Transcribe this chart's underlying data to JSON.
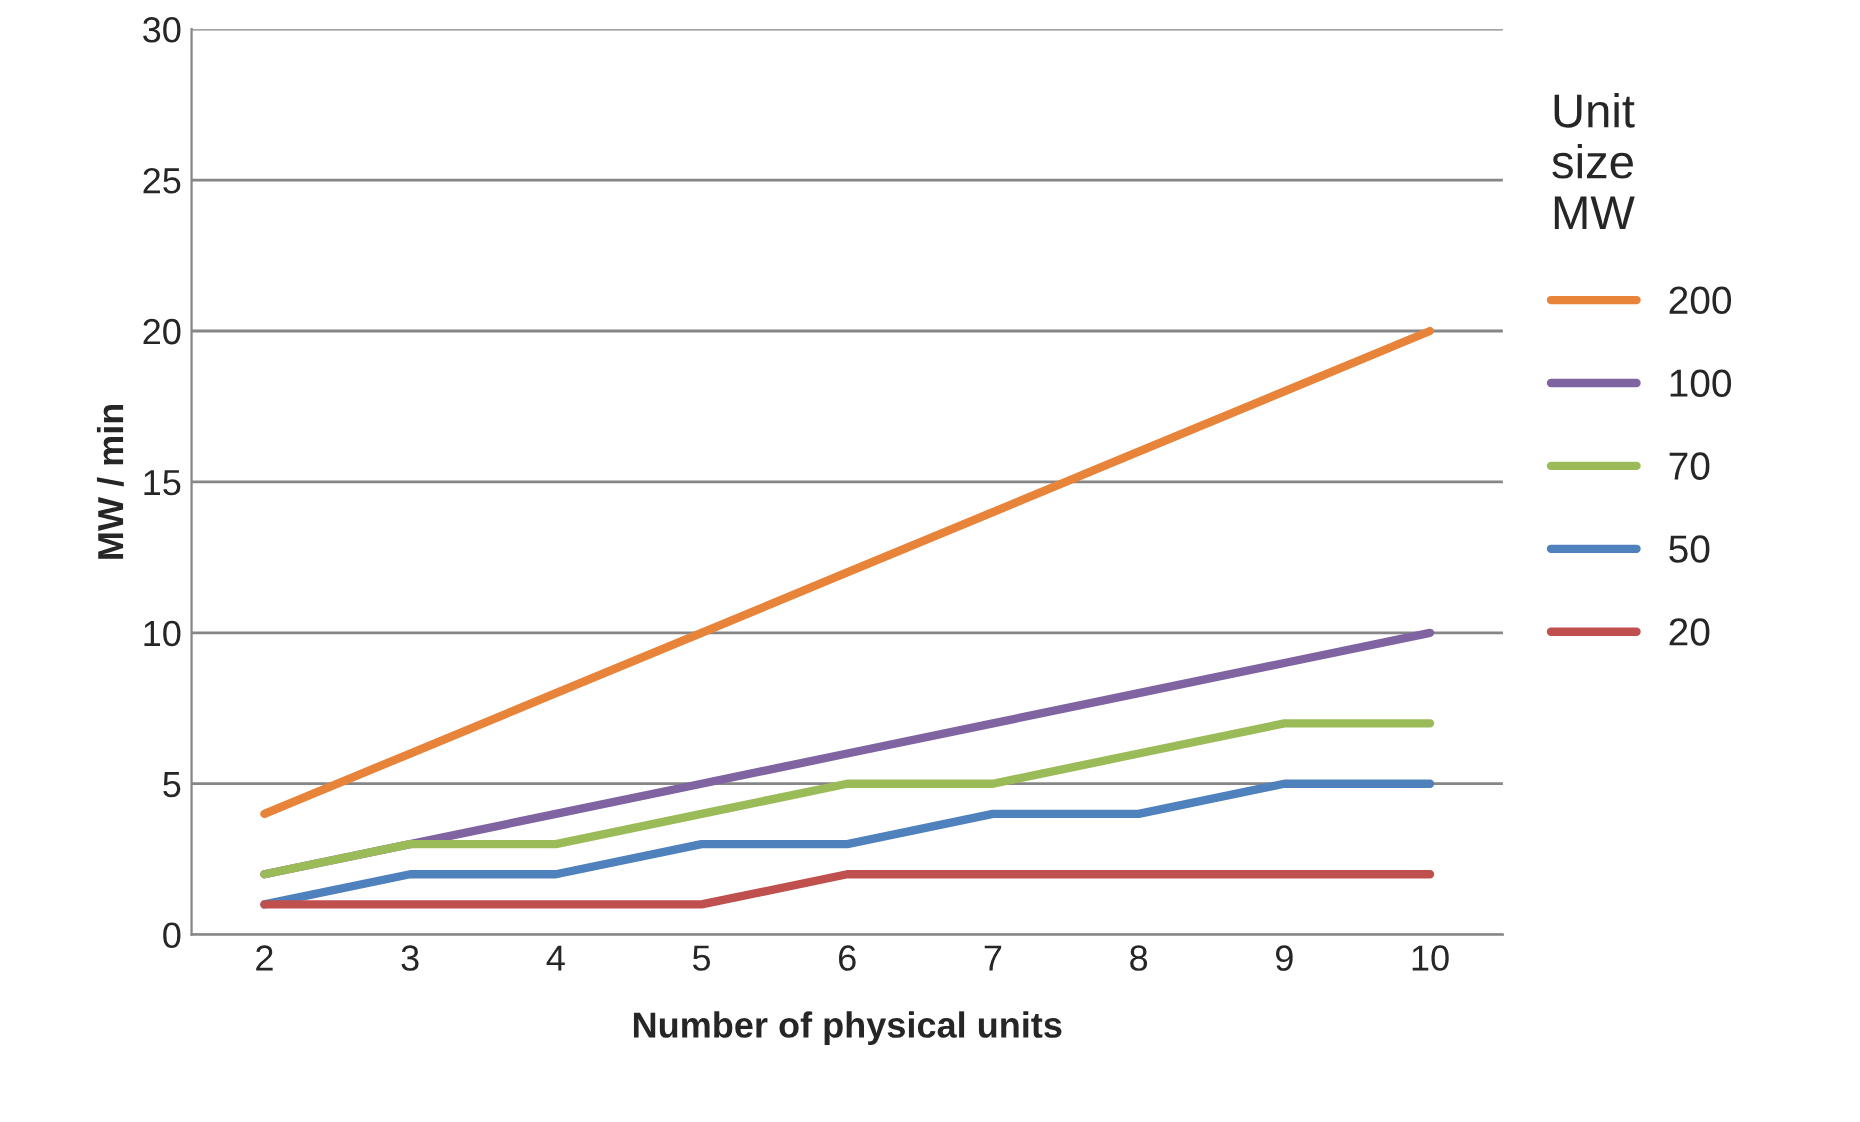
{
  "chart_data": {
    "type": "line",
    "xlabel": "Number of physical units",
    "ylabel": "MW / min",
    "legend_title": "Unit\nsize\nMW",
    "categories": [
      "2",
      "3",
      "4",
      "5",
      "6",
      "7",
      "8",
      "9",
      "10"
    ],
    "series": [
      {
        "name": "200",
        "color": "#e8833a",
        "values": [
          4,
          6,
          8,
          10,
          12,
          14,
          16,
          18,
          20
        ]
      },
      {
        "name": "100",
        "color": "#8064a2",
        "values": [
          2,
          3,
          4,
          5,
          6,
          7,
          8,
          9,
          10
        ]
      },
      {
        "name": "70",
        "color": "#9bbb59",
        "values": [
          2,
          3,
          3,
          4,
          5,
          5,
          6,
          7,
          7
        ]
      },
      {
        "name": "50",
        "color": "#4f81bd",
        "values": [
          1,
          2,
          2,
          3,
          3,
          4,
          4,
          5,
          5
        ]
      },
      {
        "name": "20",
        "color": "#c0504d",
        "values": [
          1,
          1,
          1,
          1,
          2,
          2,
          2,
          2,
          2
        ]
      }
    ],
    "ylim": [
      0,
      30
    ],
    "yticks": [
      0,
      5,
      10,
      15,
      20,
      25,
      30
    ],
    "grid": "y",
    "legend": "right",
    "marker": "none",
    "line_style": "solid"
  }
}
